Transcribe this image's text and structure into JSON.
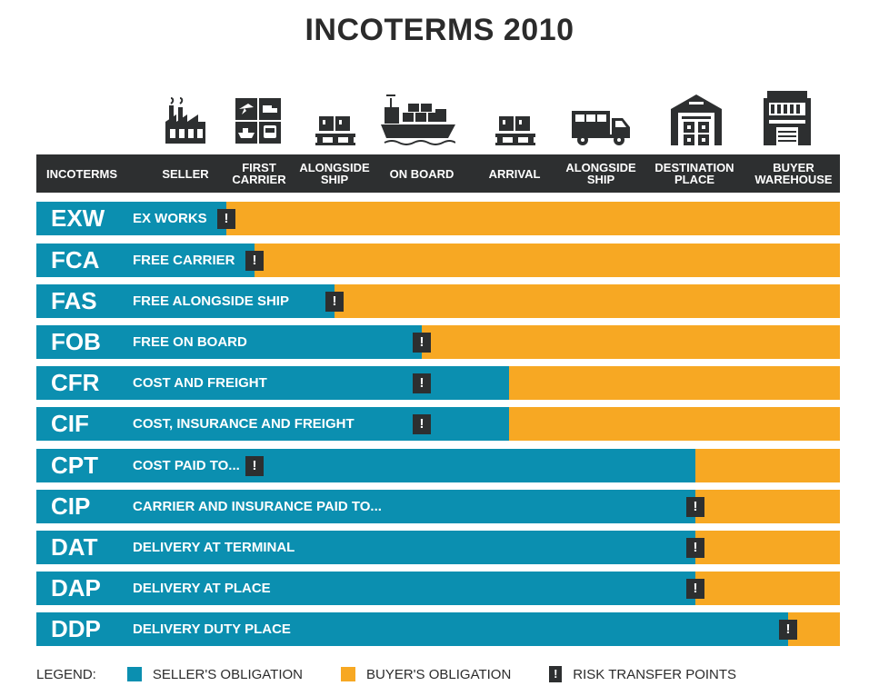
{
  "title": "INCOTERMS 2010",
  "icons": [
    "factory-icon",
    "transport-modes-icon",
    "pallet-icon",
    "cargo-ship-icon",
    "pallet-icon",
    "truck-icon",
    "warehouse-icon",
    "building-icon"
  ],
  "columns": [
    "INCOTERMS",
    "SELLER",
    "FIRST\nCARRIER",
    "ALONGSIDE\nSHIP",
    "ON BOARD",
    "ARRIVAL",
    "ALONGSIDE\nSHIP",
    "DESTINATION\nPLACE",
    "BUYER\nWAREHOUSE"
  ],
  "terms": [
    {
      "code": "EXW",
      "name": "EX WORKS",
      "seller_share": 0.236,
      "risk_point": 0.236
    },
    {
      "code": "FCA",
      "name": "FREE CARRIER",
      "seller_share": 0.271,
      "risk_point": 0.271
    },
    {
      "code": "FAS",
      "name": "FREE ALONGSIDE SHIP",
      "seller_share": 0.371,
      "risk_point": 0.371
    },
    {
      "code": "FOB",
      "name": "FREE ON BOARD",
      "seller_share": 0.48,
      "risk_point": 0.48
    },
    {
      "code": "CFR",
      "name": "COST AND FREIGHT",
      "seller_share": 0.588,
      "risk_point": 0.48
    },
    {
      "code": "CIF",
      "name": "COST, INSURANCE AND FREIGHT",
      "seller_share": 0.588,
      "risk_point": 0.48
    },
    {
      "code": "CPT",
      "name": "COST PAID TO...",
      "seller_share": 0.82,
      "risk_point": 0.272
    },
    {
      "code": "CIP",
      "name": "CARRIER AND INSURANCE PAID TO...",
      "seller_share": 0.82,
      "risk_point": 0.82
    },
    {
      "code": "DAT",
      "name": "DELIVERY AT TERMINAL",
      "seller_share": 0.82,
      "risk_point": 0.82
    },
    {
      "code": "DAP",
      "name": "DELIVERY AT PLACE",
      "seller_share": 0.82,
      "risk_point": 0.82
    },
    {
      "code": "DDP",
      "name": "DELIVERY DUTY PLACE",
      "seller_share": 0.935,
      "risk_point": 0.935
    }
  ],
  "risk_mark": "!",
  "legend": {
    "label": "LEGEND:",
    "seller": "SELLER'S OBLIGATION",
    "buyer": "BUYER'S OBLIGATION",
    "risk": "RISK TRANSFER POINTS"
  },
  "colors": {
    "seller": "#0b8fb0",
    "buyer": "#f7a823",
    "dark": "#2d2f30"
  }
}
